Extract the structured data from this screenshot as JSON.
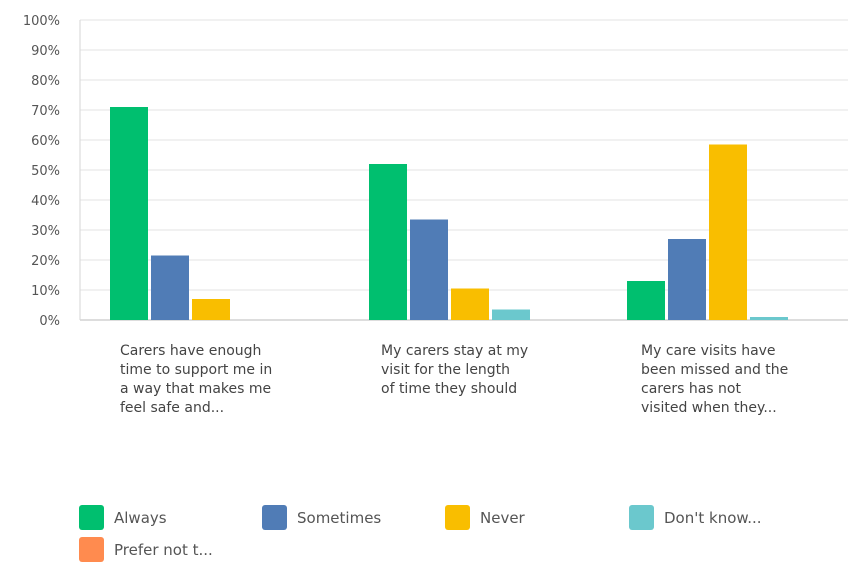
{
  "chart_data": {
    "type": "bar",
    "categories": [
      "Carers have enough time to support me in a way that makes me feel safe and...",
      "My carers stay at my visit for the length of time they should",
      "My care visits have been missed and the carers has not visited when they..."
    ],
    "category_lines": [
      [
        "Carers have enough",
        "time to support me in",
        "a way that makes me",
        "feel safe and..."
      ],
      [
        "My carers stay at my",
        "visit for the length",
        "of time they should"
      ],
      [
        "My care visits have",
        "been missed and the",
        "carers has not",
        "visited when they..."
      ]
    ],
    "series": [
      {
        "name": "Always",
        "color": "#00BF6F",
        "values": [
          71,
          52,
          13
        ]
      },
      {
        "name": "Sometimes",
        "color": "#507CB6",
        "values": [
          21.5,
          33.5,
          27
        ]
      },
      {
        "name": "Never",
        "color": "#F9BE00",
        "values": [
          7,
          10.5,
          58.5
        ]
      },
      {
        "name": "Don't know...",
        "color": "#6BC8CD",
        "values": [
          0,
          3.5,
          1
        ]
      },
      {
        "name": "Prefer not t...",
        "color": "#FF8B4F",
        "values": [
          0,
          0,
          0
        ]
      }
    ],
    "ylim": [
      0,
      100
    ],
    "yticks": [
      "0%",
      "10%",
      "20%",
      "30%",
      "40%",
      "50%",
      "60%",
      "70%",
      "80%",
      "90%",
      "100%"
    ],
    "grid": true,
    "legend_position": "bottom"
  }
}
